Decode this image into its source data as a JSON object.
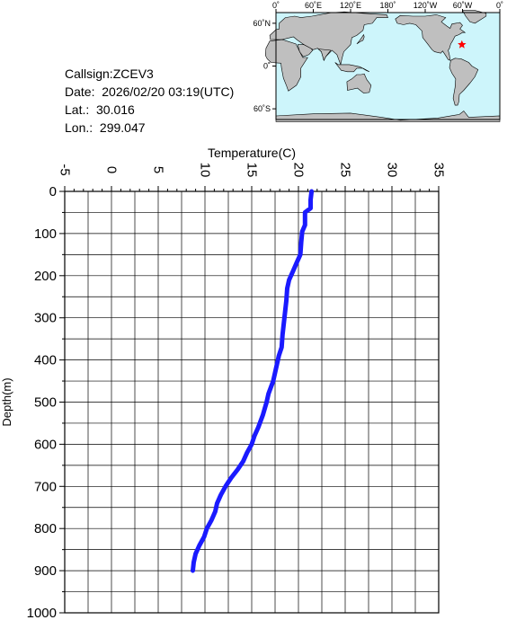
{
  "info": {
    "callsign": "Callsign:ZCEV3",
    "date": "Date:  2026/02/20 03:19(UTC)",
    "lat": "Lat.:  30.016",
    "lon": "Lon.:  299.047"
  },
  "map": {
    "lon_labels": [
      "0˚",
      "60˚E",
      "120˚E",
      "180˚",
      "120˚W",
      "60˚W",
      "0˚"
    ],
    "lat_labels": [
      "60˚N",
      "0˚",
      "60˚S"
    ],
    "marker": {
      "lat": 30.016,
      "lon": 299.047,
      "color": "#ff0000"
    },
    "colors": {
      "ocean": "#cdf5fb",
      "land": "#bfbfbf"
    }
  },
  "chart_data": {
    "type": "line",
    "xlabel": "Temperature(C)",
    "ylabel": "Depth(m)",
    "xlim": [
      -5,
      35
    ],
    "ylim": [
      0,
      1000
    ],
    "y_inverted": true,
    "x_ticks": [
      "-5",
      "0",
      "5",
      "10",
      "15",
      "20",
      "25",
      "30",
      "35"
    ],
    "y_ticks": [
      "0",
      "100",
      "200",
      "300",
      "400",
      "500",
      "600",
      "700",
      "800",
      "900",
      "1000"
    ],
    "grid": true,
    "series": [
      {
        "color": "#1a1aff",
        "points": [
          [
            21.4,
            0
          ],
          [
            21.3,
            20
          ],
          [
            21.3,
            40
          ],
          [
            20.7,
            50
          ],
          [
            20.7,
            80
          ],
          [
            20.4,
            95
          ],
          [
            20.3,
            120
          ],
          [
            20.2,
            150
          ],
          [
            19.8,
            170
          ],
          [
            19.4,
            190
          ],
          [
            19.0,
            210
          ],
          [
            18.8,
            230
          ],
          [
            18.7,
            260
          ],
          [
            18.5,
            300
          ],
          [
            18.3,
            340
          ],
          [
            18.2,
            370
          ],
          [
            17.9,
            390
          ],
          [
            17.7,
            410
          ],
          [
            17.5,
            430
          ],
          [
            17.3,
            450
          ],
          [
            16.8,
            480
          ],
          [
            16.6,
            500
          ],
          [
            16.2,
            530
          ],
          [
            15.7,
            560
          ],
          [
            15.3,
            580
          ],
          [
            15.0,
            600
          ],
          [
            14.5,
            620
          ],
          [
            14.1,
            640
          ],
          [
            13.5,
            660
          ],
          [
            12.8,
            680
          ],
          [
            12.2,
            700
          ],
          [
            11.7,
            720
          ],
          [
            11.3,
            740
          ],
          [
            11.1,
            760
          ],
          [
            10.7,
            780
          ],
          [
            10.2,
            800
          ],
          [
            9.9,
            820
          ],
          [
            9.4,
            840
          ],
          [
            9.0,
            860
          ],
          [
            8.8,
            880
          ],
          [
            8.7,
            900
          ]
        ]
      }
    ]
  }
}
